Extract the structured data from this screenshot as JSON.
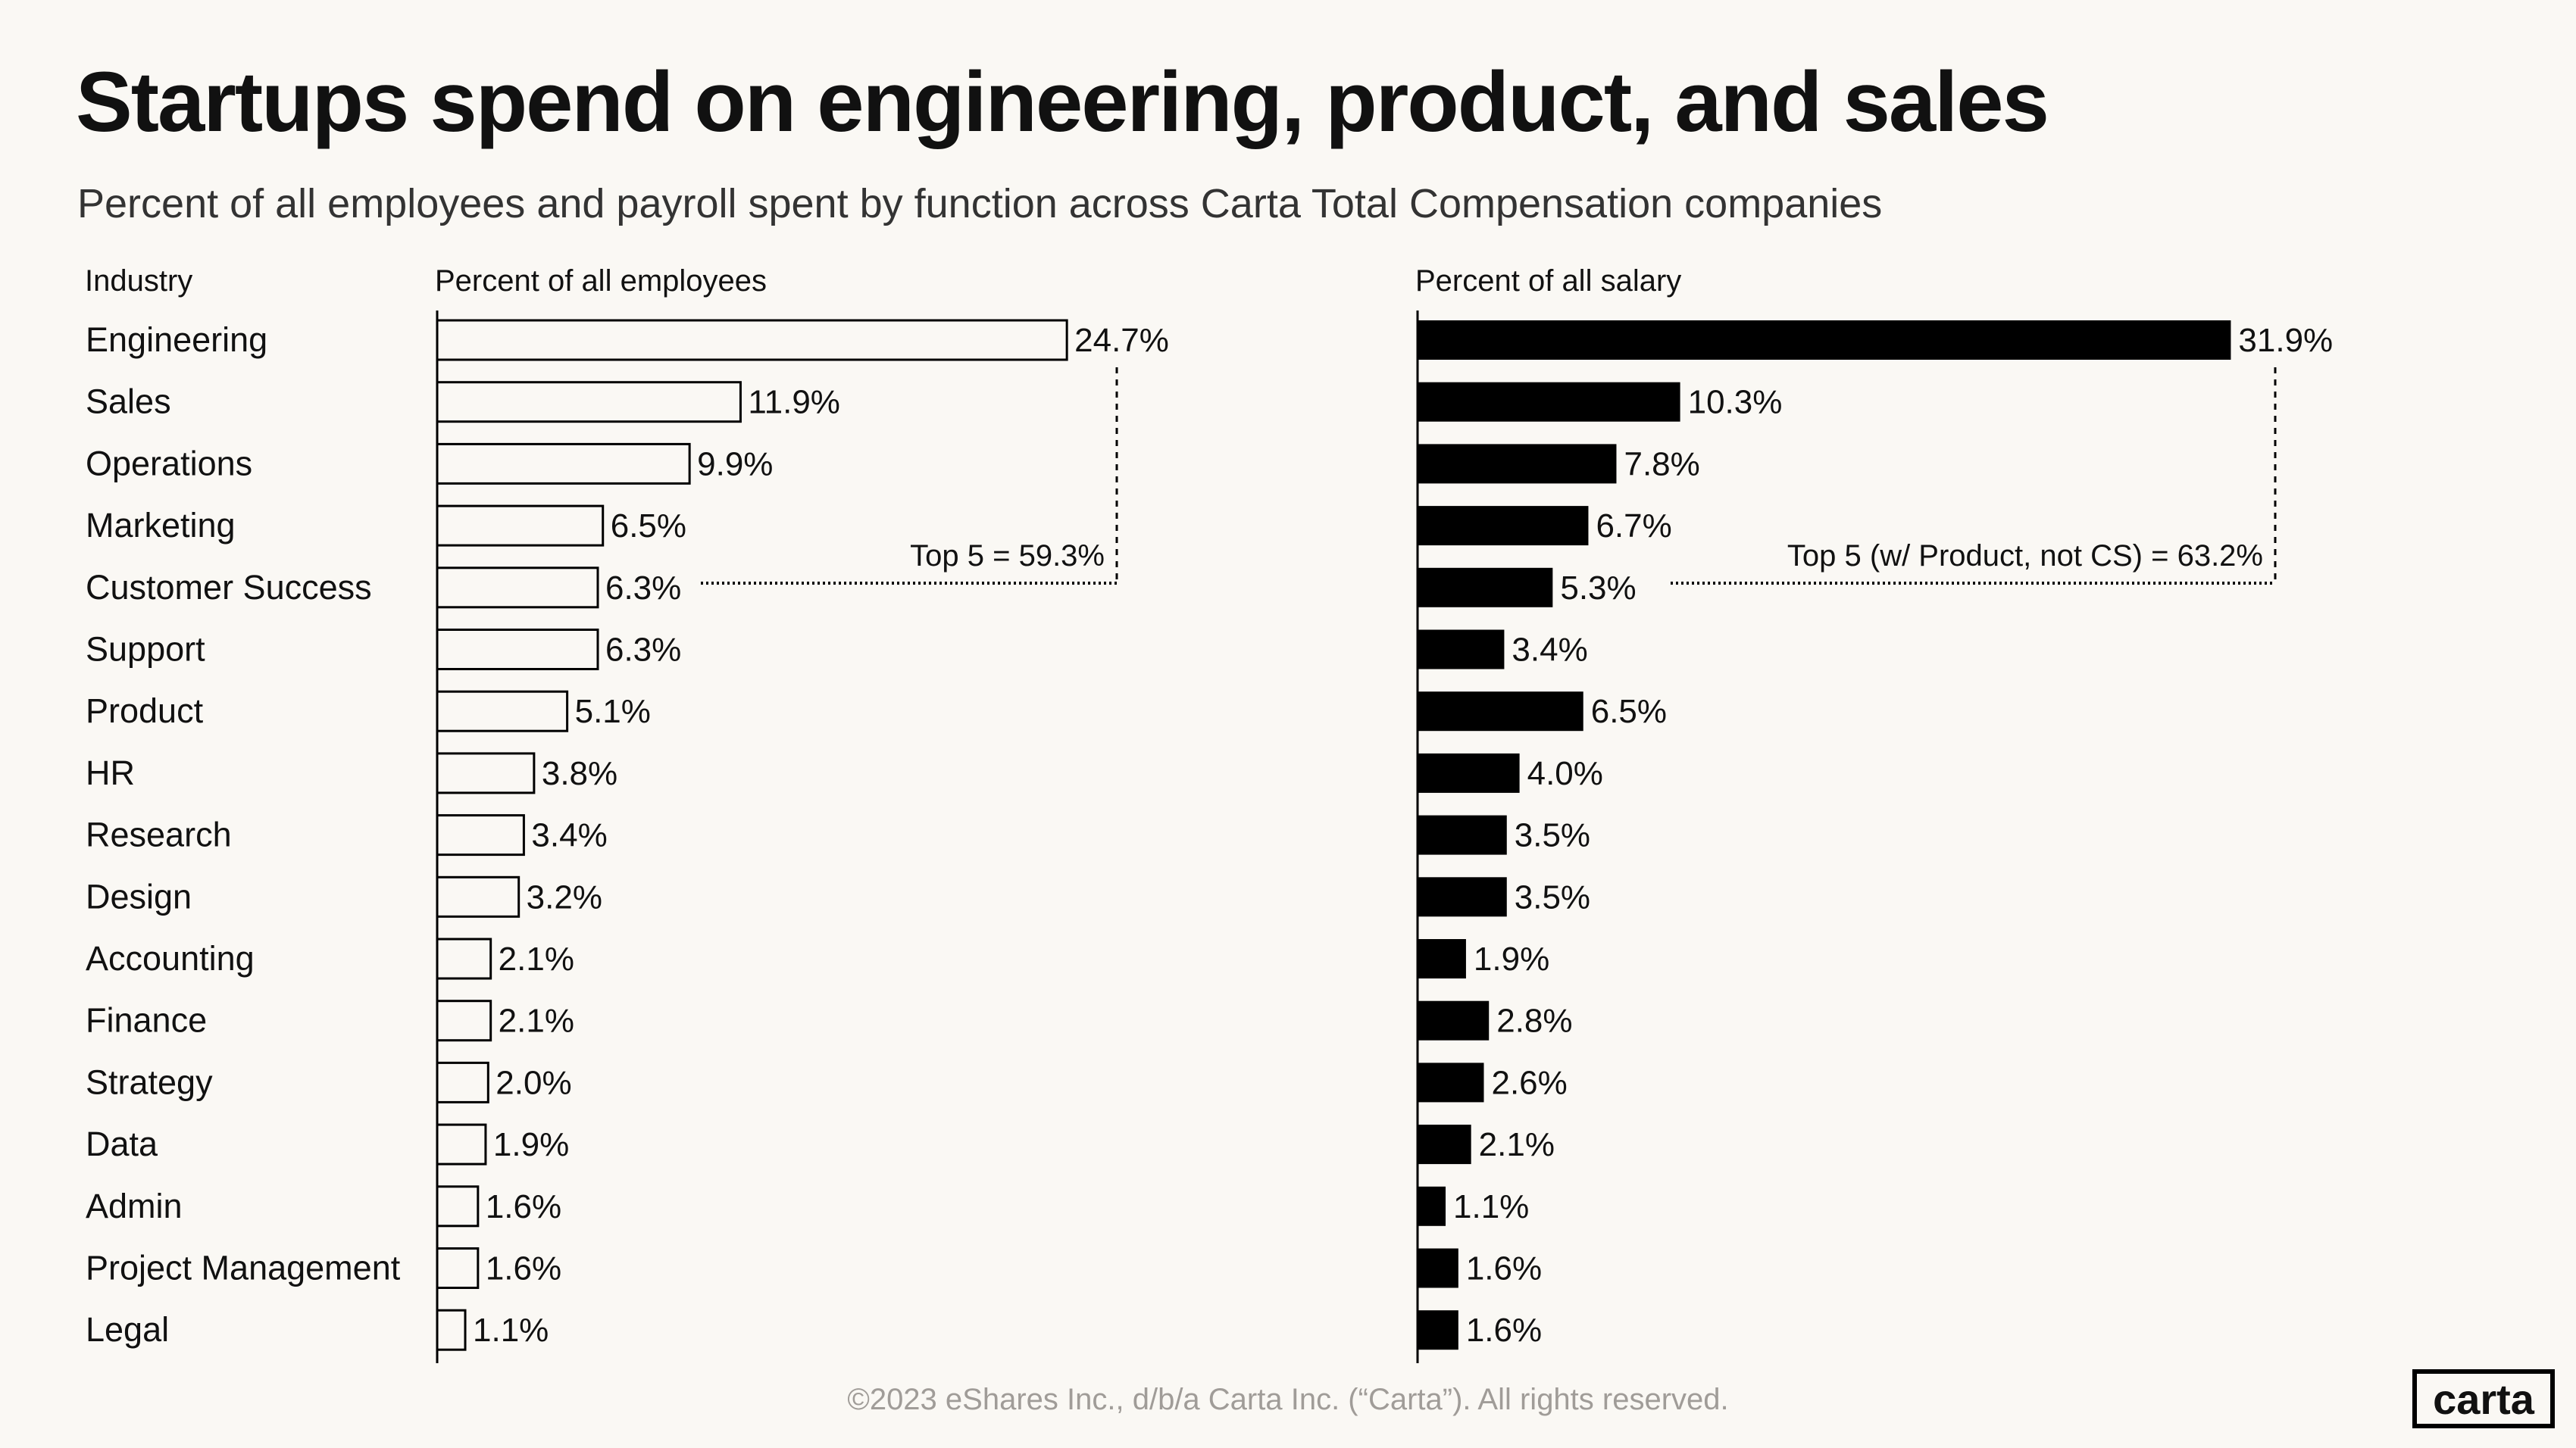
{
  "title": "Startups spend on engineering, product, and sales",
  "subtitle": "Percent of all employees and payroll spent by function across Carta Total Compensation companies",
  "footer": "©2023 eShares Inc., d/b/a Carta Inc. (“Carta”). All rights reserved.",
  "logo": "carta",
  "chart_data": {
    "type": "bar",
    "orientation": "horizontal",
    "category_header": "Industry",
    "categories": [
      "Engineering",
      "Sales",
      "Operations",
      "Marketing",
      "Customer Success",
      "Support",
      "Product",
      "HR",
      "Research",
      "Design",
      "Accounting",
      "Finance",
      "Strategy",
      "Data",
      "Admin",
      "Project Management",
      "Legal"
    ],
    "series": [
      {
        "name": "Percent of all employees",
        "color": "#faf8f4",
        "stroke": "#000000",
        "values": [
          24.7,
          11.9,
          9.9,
          6.5,
          6.3,
          6.3,
          5.1,
          3.8,
          3.4,
          3.2,
          2.1,
          2.1,
          2.0,
          1.9,
          1.6,
          1.6,
          1.1
        ],
        "annotation": "Top 5 = 59.3%"
      },
      {
        "name": "Percent of all salary",
        "color": "#000000",
        "values": [
          31.9,
          10.3,
          7.8,
          6.7,
          5.3,
          3.4,
          6.5,
          4.0,
          3.5,
          3.5,
          1.9,
          2.8,
          2.6,
          2.1,
          1.1,
          1.6,
          1.6
        ],
        "annotation": "Top 5 (w/ Product, not CS) = 63.2%"
      }
    ],
    "value_format": "%",
    "grid": false
  }
}
